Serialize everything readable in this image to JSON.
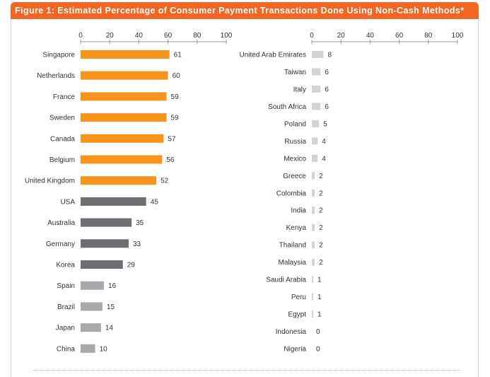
{
  "figure": {
    "title": "Figure 1: Estimated Percentage of Consumer Payment Transactions Done Using Non-Cash Methods*"
  },
  "colors": {
    "header": "#f26522",
    "orange": "#f7941e",
    "dark_gray": "#6d6e71",
    "mid_gray": "#a7a9ac",
    "light_gray": "#d1d3d4"
  },
  "chart_data": [
    {
      "type": "bar",
      "orientation": "horizontal",
      "title": "",
      "xlabel": "",
      "ylabel": "",
      "xlim": [
        0,
        100
      ],
      "ticks": [
        "0",
        "20",
        "40",
        "60",
        "80",
        "100"
      ],
      "grid": false,
      "categories": [
        "Singapore",
        "Netherlands",
        "France",
        "Sweden",
        "Canada",
        "Belgium",
        "United Kingdom",
        "USA",
        "Australia",
        "Germany",
        "Korea",
        "Spain",
        "Brazil",
        "Japan",
        "China"
      ],
      "values": [
        61,
        60,
        59,
        59,
        57,
        56,
        52,
        45,
        35,
        33,
        29,
        16,
        15,
        14,
        10
      ],
      "labels": [
        "61",
        "60",
        "59",
        "59",
        "57",
        "56",
        "52",
        "45",
        "35",
        "33",
        "29",
        "16",
        "15",
        "14",
        "10"
      ],
      "color_groups": [
        "orange",
        "orange",
        "orange",
        "orange",
        "orange",
        "orange",
        "orange",
        "dark_gray",
        "dark_gray",
        "dark_gray",
        "dark_gray",
        "mid_gray",
        "mid_gray",
        "mid_gray",
        "mid_gray"
      ]
    },
    {
      "type": "bar",
      "orientation": "horizontal",
      "title": "",
      "xlabel": "",
      "ylabel": "",
      "xlim": [
        0,
        100
      ],
      "ticks": [
        "0",
        "20",
        "40",
        "60",
        "80",
        "100"
      ],
      "grid": false,
      "categories": [
        "United Arab Emirates",
        "Taiwan",
        "Italy",
        "South Africa",
        "Poland",
        "Russia",
        "Mexico",
        "Greece",
        "Colombia",
        "India",
        "Kenya",
        "Thailand",
        "Malaysia",
        "Saudi Arabia",
        "Peru",
        "Egypt",
        "Indonesia",
        "Nigeria"
      ],
      "values": [
        8,
        6,
        6,
        6,
        5,
        4,
        4,
        2,
        2,
        2,
        2,
        2,
        2,
        1,
        1,
        1,
        0,
        0
      ],
      "labels": [
        "8",
        "6",
        "6",
        "6",
        "5",
        "4",
        "4",
        "2",
        "2",
        "2",
        "2",
        "2",
        "2",
        "1",
        "1",
        "1",
        "0",
        "0"
      ],
      "color_groups": [
        "light_gray",
        "light_gray",
        "light_gray",
        "light_gray",
        "light_gray",
        "light_gray",
        "light_gray",
        "light_gray",
        "light_gray",
        "light_gray",
        "light_gray",
        "light_gray",
        "light_gray",
        "light_gray",
        "light_gray",
        "light_gray",
        "light_gray",
        "light_gray"
      ]
    }
  ]
}
